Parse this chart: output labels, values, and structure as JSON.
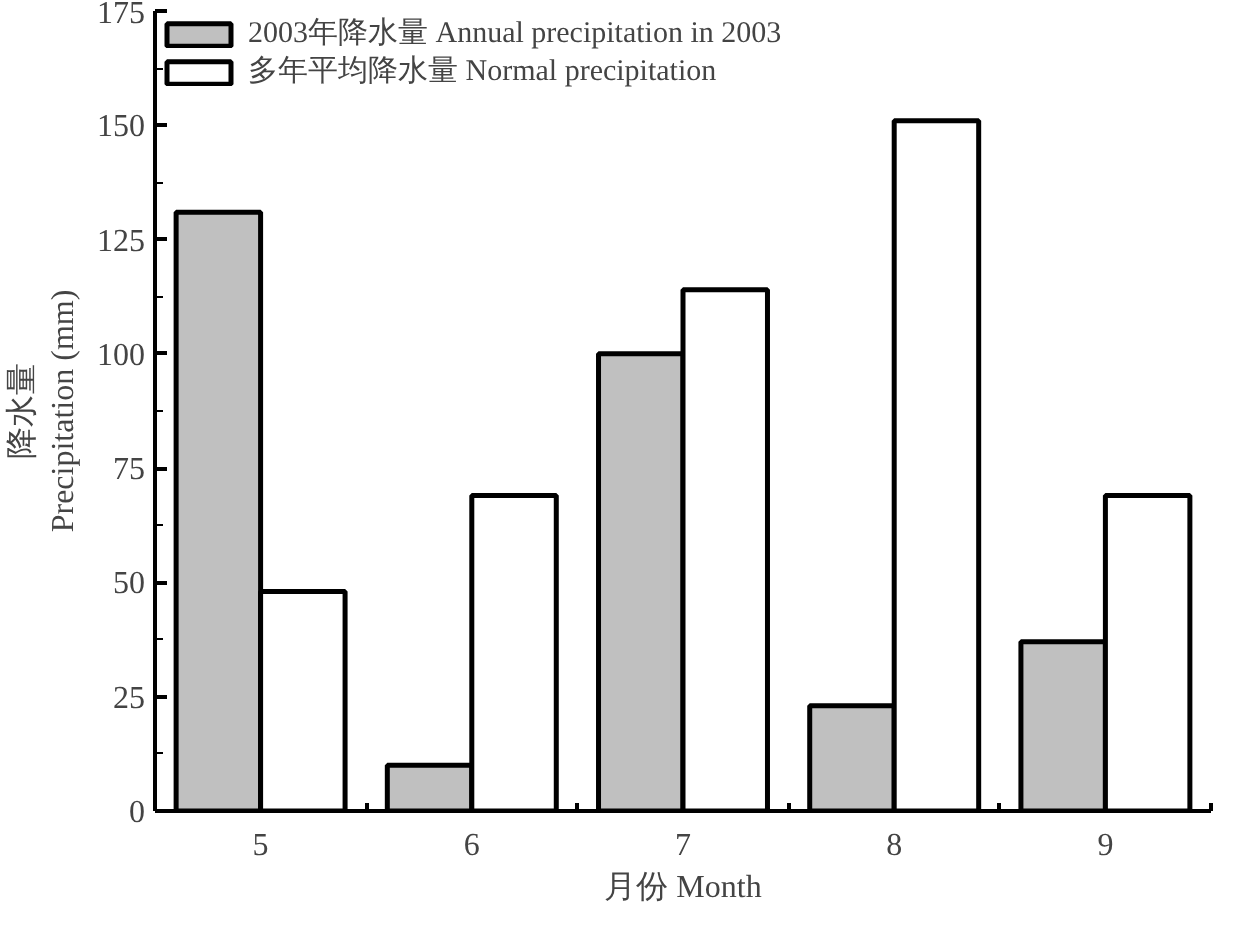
{
  "chart_data": {
    "type": "bar",
    "xlabel": "月份 Month",
    "ylabel": "降水量\nPrecipitation (mm)",
    "categories": [
      "5",
      "6",
      "7",
      "8",
      "9"
    ],
    "series": [
      {
        "name": "2003年降水量 Annual precipitation in 2003",
        "color": "#c0c0c0",
        "values": [
          131,
          10,
          100,
          23,
          37
        ]
      },
      {
        "name": "多年平均降水量 Normal precipitation",
        "color": "#ffffff",
        "values": [
          48,
          69,
          114,
          151,
          69
        ]
      }
    ],
    "ylim": [
      0,
      175
    ],
    "yticks": [
      0,
      25,
      50,
      75,
      100,
      125,
      150,
      175
    ],
    "grid": false,
    "legend": "top"
  }
}
